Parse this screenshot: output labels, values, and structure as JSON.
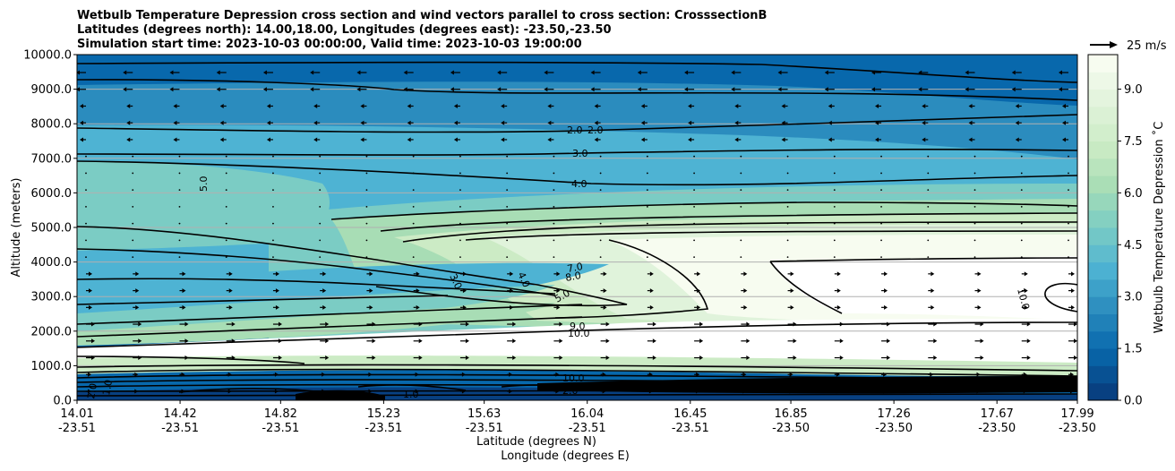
{
  "chart_data": {
    "type": "heatmap",
    "title_lines": [
      "Wetbulb Temperature Depression cross section and wind vectors parallel to cross section: CrosssectionB",
      "Latitudes (degrees north): 14.00,18.00, Longitudes (degrees east): -23.50,-23.50",
      "Simulation start time: 2023-10-03 00:00:00, Valid time: 2023-10-03 19:00:00"
    ],
    "xlabel": "Latitude (degrees N)",
    "xlabel2": "Longitude (degrees E)",
    "ylabel": "Altitude (meters)",
    "ylim": [
      0,
      10000
    ],
    "y_ticks": [
      "0.0",
      "1000.0",
      "2000.0",
      "3000.0",
      "4000.0",
      "5000.0",
      "6000.0",
      "7000.0",
      "8000.0",
      "9000.0",
      "10000.0"
    ],
    "x_ticks": [
      {
        "lat": "14.01",
        "lon": "-23.51"
      },
      {
        "lat": "14.42",
        "lon": "-23.51"
      },
      {
        "lat": "14.82",
        "lon": "-23.51"
      },
      {
        "lat": "15.23",
        "lon": "-23.51"
      },
      {
        "lat": "15.63",
        "lon": "-23.51"
      },
      {
        "lat": "16.04",
        "lon": "-23.51"
      },
      {
        "lat": "16.45",
        "lon": "-23.51"
      },
      {
        "lat": "16.85",
        "lon": "-23.50"
      },
      {
        "lat": "17.26",
        "lon": "-23.50"
      },
      {
        "lat": "17.67",
        "lon": "-23.50"
      },
      {
        "lat": "17.99",
        "lon": "-23.50"
      }
    ],
    "x_range": [
      14.01,
      17.99
    ],
    "grid": "horizontal",
    "colorbar": {
      "label": "Wetbulb Temperature Depression ˚C",
      "range": [
        0,
        10
      ],
      "ticks": [
        "0.0",
        "1.5",
        "3.0",
        "4.5",
        "6.0",
        "7.5",
        "9.0"
      ],
      "colors": [
        "#084081",
        "#0868ac",
        "#2b8cbe",
        "#4eb3d3",
        "#7bccc4",
        "#a8ddb5",
        "#ccebc5",
        "#e0f3db",
        "#f7fcf0",
        "#ffffff"
      ]
    },
    "quiver_key": "25 m/s",
    "contour_labels": [
      "2.0",
      "2.0",
      "3.0",
      "4.0",
      "5.0",
      "7.0",
      "8.0",
      "5.0",
      "3.0",
      "4.0",
      "9.0",
      "10.0",
      "10.0",
      "10.0",
      "1.0",
      "1.0",
      "2.0",
      "2.0"
    ]
  }
}
